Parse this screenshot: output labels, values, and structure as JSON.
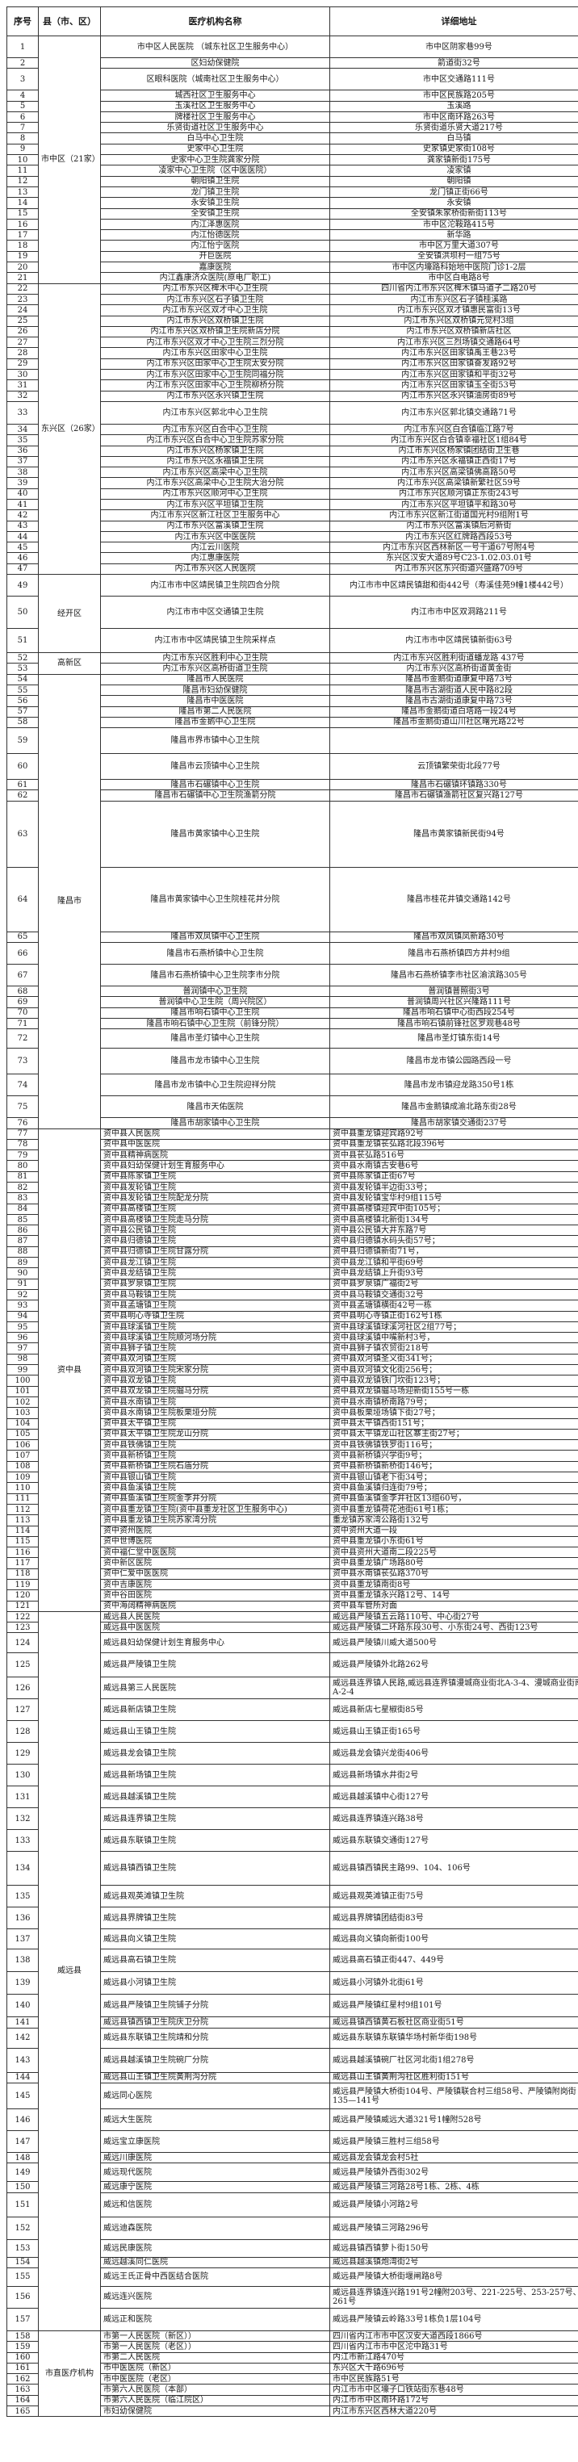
{
  "header": {
    "no": "序号",
    "district": "县（市、区）",
    "name": "医疗机构名称",
    "address": "详细地址"
  },
  "groups": [
    {
      "district": "市中区（21家）",
      "rows": [
        [
          "1",
          "市中区人民医院\n（城东社区卫生服务中心）",
          "市中区阴家巷99号"
        ],
        [
          "2",
          "区妇幼保健院",
          "箭道街32号"
        ],
        [
          "3",
          "区眼科医院（城南社区卫生服务中心）",
          "市中区交通路111号"
        ],
        [
          "4",
          "城西社区卫生服务中心",
          "市中区民族路205号"
        ],
        [
          "5",
          "玉溪社区卫生服务中心",
          "玉溪路"
        ],
        [
          "6",
          "牌楼社区卫生服务中心",
          "市中区南环路263号"
        ],
        [
          "7",
          "乐贤街道社区卫生服务中心",
          "乐贤街道乐贤大道217号"
        ],
        [
          "8",
          "白马中心卫生院",
          "白马镇"
        ],
        [
          "9",
          "史家中心卫生院",
          "史家镇史家街108号"
        ],
        [
          "10",
          "史家中心卫生院龚家分院",
          "龚家镇新街175号"
        ],
        [
          "11",
          "凌家中心卫生院（区中医医院）",
          "凌家镇"
        ],
        [
          "12",
          "朝阳镇卫生院",
          "朝阳镇"
        ],
        [
          "13",
          "龙门镇卫生院",
          "龙门镇正街66号"
        ],
        [
          "14",
          "永安镇卫生院",
          "永安镇"
        ],
        [
          "15",
          "全安镇卫生院",
          "全安镇朱家桥街新街113号"
        ],
        [
          "16",
          "内江泽惠医院",
          "市中区沱鞍路415号"
        ],
        [
          "17",
          "内江怡德医院",
          "新华路"
        ],
        [
          "18",
          "内江怡宁医院",
          "市中区万里大道307号"
        ],
        [
          "19",
          "开巨医院",
          "全安镇洪坝村一组75号"
        ],
        [
          "20",
          "嘉康医院",
          "市中区内壕路科始地中医院门诊1-2层"
        ],
        [
          "21",
          "内江鑫康济众医院(原电厂职工)",
          "市中区白电路8号"
        ]
      ]
    },
    {
      "district": "东兴区（26家）",
      "rows": [
        [
          "22",
          "内江市东兴区椑木中心卫生院",
          "四川省内江市东兴区椑木镇马道子二路20号"
        ],
        [
          "23",
          "内江市东兴区石子镇卫生院",
          "内江市东兴区石子镇桂溪路"
        ],
        [
          "24",
          "内江市东兴区双才中心卫生院",
          "内江市东兴区双才镇惠民富街13号"
        ],
        [
          "25",
          "内江市东兴区双桥镇卫生院",
          "内江市东兴区双桥镇元觉村3组"
        ],
        [
          "26",
          "内江市东兴区双桥镇卫生院新店分院",
          "内江市东兴区双桥镇新店社区"
        ],
        [
          "27",
          "内江市东兴区双才中心卫生院三烈分院",
          "内江市东兴区三烈场镇交通路64号"
        ],
        [
          "28",
          "内江市东兴区田家中心卫生院",
          "内江市东兴区田家镇禹王巷23号"
        ],
        [
          "29",
          "内江市东兴区田家中心卫生院太安分院",
          "内江市东兴区田家镇奋发路92号"
        ],
        [
          "30",
          "内江市东兴区田家中心卫生院同福分院",
          "内江市东兴区田家镇和平街32号"
        ],
        [
          "31",
          "内江市东兴区田家中心卫生院柳桥分院",
          "内江市东兴区田家镇玉全街53号"
        ],
        [
          "32",
          "内江市东兴区永兴镇卫生院",
          "内江市东兴区永兴镇油房街89号"
        ],
        [
          "33",
          "内江市东兴区郭北中心卫生院",
          "内江市东兴区郭北镇交通路71号"
        ],
        [
          "34",
          "内江市东兴区白合中心卫生院",
          "内江市东兴区白合镇临江路7号"
        ],
        [
          "35",
          "内江市东兴区白合中心卫生院苏家分院",
          "内江市东兴区白合镇幸福社区1组84号"
        ],
        [
          "36",
          "内江市东兴区杨家镇卫生院",
          "内江市东兴区杨家镇团结街卫生巷"
        ],
        [
          "37",
          "内江市东兴区永福镇卫生院",
          "内江市东兴区永福镇正西街17号"
        ],
        [
          "38",
          "内江市东兴区高梁中心卫生院",
          "内江市东兴区高梁镇佛高路50号"
        ],
        [
          "39",
          "内江市东兴区高梁中心卫生院大治分院",
          "内江市东兴区高梁镇新繁社区59号"
        ],
        [
          "40",
          "内江市东兴区顺河中心卫生院",
          "内江市东兴区顺河镇正东街243号"
        ],
        [
          "41",
          "内江市东兴区平坦镇卫生院",
          "内江市东兴区平坦镇平和路30号"
        ],
        [
          "42",
          "内江市东兴区新江社区卫生服务中心",
          "内江市东兴区新江街道国光村9组附1号"
        ],
        [
          "43",
          "内江市东兴区富溪镇卫生院",
          "内江市东兴区富溪镇后河新街"
        ],
        [
          "44",
          "内江市东兴区中医医院",
          "内江市东兴区红牌路西段53号"
        ],
        [
          "45",
          "内江云川医院",
          "内江市东兴区西林新区一号干道67号附4号"
        ],
        [
          "46",
          "内江惠康医院",
          "东兴区汉安大道89号C23-1.02.03.01号"
        ],
        [
          "47",
          "内江市东兴区人民医院",
          "内江市东兴区东兴街道兴盛路709号"
        ]
      ]
    },
    {
      "district": "经开区",
      "rows": [
        [
          "49",
          "内江市市中区靖民镇卫生院四合分院",
          "内江市市中区靖民镇甜和街442号（寿溪佳苑9幢1楼442号）"
        ],
        [
          "50",
          "内江市市中区交通镇卫生院",
          "内江市市中区双洞路211号"
        ],
        [
          "51",
          "内江市市中区靖民镇卫生院采样点",
          "内江市市中区靖民镇新街63号"
        ]
      ]
    },
    {
      "district": "高新区",
      "rows": [
        [
          "52",
          "内江市东兴区胜利中心卫生院",
          "内江市东兴区胜利街道蟠龙路 437号"
        ],
        [
          "53",
          "内江市东兴区高桥街道卫生院",
          "内江市东兴区高桥街道黄金街"
        ]
      ]
    },
    {
      "district": "隆昌市",
      "rows": [
        [
          "54",
          "隆昌市人民医院",
          "隆昌市金鹅街道康复中路73号"
        ],
        [
          "55",
          "隆昌市妇幼保健院",
          "隆昌市古湖街道人民中路82段"
        ],
        [
          "56",
          "隆昌市中医医院",
          "隆昌市古湖街道康复中路73号"
        ],
        [
          "57",
          "隆昌市第二人民医院",
          "隆昌市金鹅街道白塔路一段24号"
        ],
        [
          "58",
          "隆昌市金鹅中心卫生院",
          "隆昌市金鹅街道山川社区曙光路22号"
        ],
        [
          "59",
          "隆昌市界市镇中心卫生院",
          ""
        ],
        [
          "60",
          "隆昌市云顶镇中心卫生院",
          "云顶镇繁荣街北段77号"
        ],
        [
          "61",
          "隆昌市石碾镇中心卫生院",
          "隆昌市石碾镇环镇路330号"
        ],
        [
          "62",
          "隆昌市石碾镇中心卫生院渔箭分院",
          "隆昌市石碾镇渔箭社区复兴路127号"
        ],
        [
          "63",
          "隆昌市黄家镇中心卫生院",
          "隆昌市黄家镇新民街94号"
        ],
        [
          "64",
          "隆昌市黄家镇中心卫生院桂花井分院",
          "隆昌市桂花井镇交通路142号"
        ],
        [
          "65",
          "隆昌市双凤镇中心卫生院",
          "隆昌市双凤镇凤新路30号"
        ],
        [
          "66",
          "隆昌市石燕桥镇中心卫生院",
          "隆昌市石燕桥镇四方井村9组"
        ],
        [
          "67",
          "隆昌市石燕桥镇中心卫生院李市分院",
          "隆昌市石燕桥镇李市社区渝滨路305号"
        ],
        [
          "68",
          "普润镇中心卫生院",
          "普润镇普照街3号"
        ],
        [
          "69",
          "普润镇中心卫生院（周兴院区）",
          "普润镇周兴社区兴隆路111号"
        ],
        [
          "70",
          "隆昌市响石镇中心卫生院",
          "隆昌市响石镇中心街西段254号"
        ],
        [
          "71",
          "隆昌市响石镇中心卫生院（前锋分院）",
          "隆昌市响石镇前锋社区罗观巷48号"
        ],
        [
          "72",
          "隆昌市圣灯镇中心卫生院",
          "隆昌市圣灯镇东街14号"
        ],
        [
          "73",
          "隆昌市龙市镇中心卫生院",
          "隆昌市龙市镇公园路西段一号"
        ],
        [
          "74",
          "隆昌市龙市镇中心卫生院迎祥分院",
          "隆昌市龙市镇迎龙路350号1栋"
        ],
        [
          "75",
          "隆昌市天佑医院",
          "隆昌市金鹅镇成渝北路东街28号"
        ],
        [
          "76",
          "隆昌市胡家镇中心卫生院",
          "隆昌市胡家镇交通街237号"
        ]
      ]
    },
    {
      "district": "资中县",
      "rows": [
        [
          "77",
          "资中县人民医院",
          "资中县重龙镇迎宾路92号"
        ],
        [
          "78",
          "资中县中医医院",
          "资中县重龙镇苌弘路北段396号"
        ],
        [
          "79",
          "资中县精神病医院",
          "资中县苌弘路516号"
        ],
        [
          "80",
          "资中县妇幼保健计划生育服务中心",
          "资中县水南镇古安巷6号"
        ],
        [
          "81",
          "资中县陈家镇卫生院",
          "资中县陈家镇正街67号"
        ],
        [
          "82",
          "资中县发轮镇卫生院",
          "资中县发轮镇半边街33号；"
        ],
        [
          "83",
          "资中县发轮镇卫生院配龙分院",
          "资中县发轮镇宝华村9组115号"
        ],
        [
          "84",
          "资中县高楼镇卫生院",
          "资中县高楼镇迎宾中街105号；"
        ],
        [
          "85",
          "资中县高楼镇卫生院走马分院",
          "资中县高楼镇北新街134号"
        ],
        [
          "86",
          "资中县公民镇卫生院",
          "资中县公民镇大井东路7号"
        ],
        [
          "87",
          "资中县归德镇卫生院",
          "资中县归德镇水码头街57号；"
        ],
        [
          "88",
          "资中县归德镇卫生院甘露分院",
          "资中县归德镇新街71号，"
        ],
        [
          "89",
          "资中县龙江镇卫生院",
          "资中县龙江镇和平街69号"
        ],
        [
          "90",
          "资中县龙结镇卫生院",
          "资中县龙结镇上升街93号"
        ],
        [
          "91",
          "资中县罗泉镇卫生院",
          "资中县罗泉镇广福街2号"
        ],
        [
          "92",
          "资中县马鞍镇卫生院",
          "资中县马鞍镇交通街32号"
        ],
        [
          "93",
          "资中县孟塘镇卫生院",
          "资中县孟塘镇横街42号一栋"
        ],
        [
          "94",
          "资中县明心寺镇卫生院",
          "资中县明心寺镇正街162号1栋"
        ],
        [
          "95",
          "资中县球溪镇卫生院",
          "资中县球溪镇球溪河社区2组77号；"
        ],
        [
          "96",
          "资中县球溪镇卫生院顺河场分院",
          "资中县球溪镇中嘴新村3号，"
        ],
        [
          "97",
          "资中县狮子镇卫生院",
          "资中县狮子镇农贸街218号"
        ],
        [
          "98",
          "资中县双河镇卫生院",
          "资中县双河镇圣义街341号；"
        ],
        [
          "99",
          "资中县双河镇卫生院宋家分院",
          "资中县双河镇文化街256号；"
        ],
        [
          "100",
          "资中县双龙镇卫生院",
          "资中县双龙镇铁门坎街123号；"
        ],
        [
          "101",
          "资中县双龙镇卫生院骝马分院",
          "资中县双龙镇骝马场迎新街155号一栋"
        ],
        [
          "102",
          "资中县水南镇卫生院",
          "资中县水南镇桥南路79号；"
        ],
        [
          "103",
          "资中县水南镇卫生院板栗垭分院",
          "资中县板栗垭场镇下街27号；"
        ],
        [
          "104",
          "资中县太平镇卫生院",
          "资中县太平镇西街151号；"
        ],
        [
          "105",
          "资中县太平镇卫生院龙山分院",
          "资中县太平镇龙山社区寨主街27号；"
        ],
        [
          "106",
          "资中县铁佛镇卫生院",
          "资中县铁佛镇铁罗街116号；"
        ],
        [
          "107",
          "资中县新桥镇卫生院",
          "资中县新桥镇兴学街9号；"
        ],
        [
          "108",
          "资中县新桥镇卫生院石庙分院",
          "资中县新桥镇新桥街146号；"
        ],
        [
          "109",
          "资中县银山镇卫生院",
          "资中县银山镇老下街34号；"
        ],
        [
          "110",
          "资中县鱼溪镇卫生院",
          "资中县鱼溪镇归连街79号；"
        ],
        [
          "111",
          "资中县鱼溪镇卫生院金李井分院",
          "资中县鱼溪镇金李井社区13组60号，"
        ],
        [
          "112",
          "资中县重龙镇卫生院(资中县重龙社区卫生服务中心)",
          "资中县重龙镇荷花池街61号1栋；"
        ],
        [
          "113",
          "资中县重龙镇卫生院苏家湾分院",
          "重龙镇苏家湾公路街132号"
        ],
        [
          "114",
          "资中资州医院",
          "资中资州大道一段"
        ],
        [
          "115",
          "资中世博医院",
          "资中县重龙镇小东街61号"
        ],
        [
          "116",
          "资中福仁堂中医医院",
          "资中县资州大道南二段225号"
        ],
        [
          "117",
          "资中新区医院",
          "资中县重龙镇广场路80号"
        ],
        [
          "118",
          "资中仁爱中医医院",
          "资中县水南镇苌弘路370号"
        ],
        [
          "119",
          "资中吉康医院",
          "资中县重龙镇南街8号"
        ],
        [
          "120",
          "资中谷田医院",
          "资中县重龙镇永兴路12号、14号"
        ],
        [
          "121",
          "资中海阔精神病医院",
          "资中县车管所对面"
        ]
      ]
    },
    {
      "district": "威远县",
      "rows": [
        [
          "122",
          "威远县人民医院",
          "威远县严陵镇五云路110号、中心街27号"
        ],
        [
          "123",
          "威远县中医医院",
          "威远县严陵镇二环路东段30号、小东街24号、西街123号"
        ],
        [
          "124",
          "威远县妇幼保健计划生育服务中心",
          "威远县严陵镇川威大道500号"
        ],
        [
          "125",
          "威远县严陵镇卫生院",
          "威远县严陵镇外北路262号"
        ],
        [
          "126",
          "威远县第三人民医院",
          "威远县连界镇人民路,威远县连界镇漫城商业街北A-3-4、漫城商业街南A-2-4"
        ],
        [
          "127",
          "威远县新店镇卫生院",
          "威远县新店七星椒街85号"
        ],
        [
          "128",
          "威远县山王镇卫生院",
          "威远县山王镇正街165号"
        ],
        [
          "129",
          "威远县龙会镇卫生院",
          "威远县龙会镇兴龙街406号"
        ],
        [
          "130",
          "威远县新场镇卫生院",
          "威远县新场镇水井街2号"
        ],
        [
          "131",
          "威远县越溪镇卫生院",
          "威远县越溪镇中心街127号"
        ],
        [
          "132",
          "威远县连界镇卫生院",
          "威远县连界镇连兴路38号"
        ],
        [
          "133",
          "威远县东联镇卫生院",
          "威远县东联镇交通街127号"
        ],
        [
          "134",
          "威远县镇西镇卫生院",
          "威远县镇西镇民主路99、104、106号"
        ],
        [
          "135",
          "威远县观英滩镇卫生院",
          "威远县观英滩镇正街75号"
        ],
        [
          "136",
          "威远县界牌镇卫生院",
          "威远县界牌镇团结街83号"
        ],
        [
          "137",
          "威远县向义镇卫生院",
          "威远县向义镇向新街100号"
        ],
        [
          "138",
          "威远县高石镇卫生院",
          "威远县高石镇正街447、449号"
        ],
        [
          "139",
          "威远县小河镇卫生院",
          "威远县小河镇外北街61号"
        ],
        [
          "140",
          "威远县严陵镇卫生院铺子分院",
          "威远县严陵镇红星村9组101号"
        ],
        [
          "141",
          "威远县镇西镇卫生院庆卫分院",
          "威远县镇西镇黄石板社区商业街51号"
        ],
        [
          "142",
          "威远县东联镇卫生院靖和分院",
          "威远县东联镇东联镇华场村新华街198号"
        ],
        [
          "143",
          "威远县越溪镇卫生院碗厂分院",
          "威远县越溪镇碗厂社区河北街1组278号"
        ],
        [
          "144",
          "威远县山王镇卫生院黄荆沟分院",
          "威远县山王镇黄荆沟社区胜利街151号"
        ],
        [
          "145",
          "威远同心医院",
          "威远县严陵镇大桥街104号、严陵镇联合村三组58号、严陵镇附岗街135—141号"
        ],
        [
          "146",
          "威远大生医院",
          "威远县严陵镇威远大道321号1幢附528号"
        ],
        [
          "147",
          "威远宝立康医院",
          "威远县严陵镇三胜村三组58号"
        ],
        [
          "148",
          "威远川康医院",
          "威远县龙会镇龙会村5社"
        ],
        [
          "149",
          "威远现代医院",
          "威远县严陵镇外西街302号"
        ],
        [
          "150",
          "威远康宁医院",
          "威远县严陵镇三河路28号1栋、2栋、4栋"
        ],
        [
          "151",
          "威远和信医院",
          "威远县严陵镇小河路2号"
        ],
        [
          "152",
          "威远迪森医院",
          "威远县严陵镇三河路296号"
        ],
        [
          "153",
          "威远民康医院",
          "威远县镇西镇萝卜街150号"
        ],
        [
          "154",
          "威远越溪同仁医院",
          "威远县越溪镇炮湾街2号"
        ],
        [
          "155",
          "威远王氏正骨中西医结合医院",
          "威远县严陵镇大桥街堰闸路8号"
        ],
        [
          "156",
          "威远连兴医院",
          "威远县连界镇连兴路191号2幢附203号、221-225号、253-257号、261号"
        ],
        [
          "157",
          "威远正和医院",
          "威远县严陵镇云岭路33号1栋负1层104号"
        ]
      ]
    },
    {
      "district": "市直医疗机构",
      "rows": [
        [
          "158",
          "市第一人民医院（新区））",
          "四川省内江市市中区汉安大道西段1866号"
        ],
        [
          "159",
          "市第一人民医院（老区））",
          "四川省内江市市中区沱中路31号"
        ],
        [
          "160",
          "市第二人民医院",
          "内江市新江路470号"
        ],
        [
          "161",
          "市中医医院（新区）",
          "东兴区大千路696号"
        ],
        [
          "162",
          "市中医医院（老区）",
          "市中区民族路51号"
        ],
        [
          "163",
          "市第六人民医院（本部）",
          "内江市市中区壕子口铁站街东巷48号"
        ],
        [
          "164",
          "市第六人民医院（临江院区）",
          "内江市市中区南环路172号"
        ],
        [
          "165",
          "市妇幼保健院",
          "内江市东兴区西林大道220号"
        ]
      ]
    }
  ]
}
